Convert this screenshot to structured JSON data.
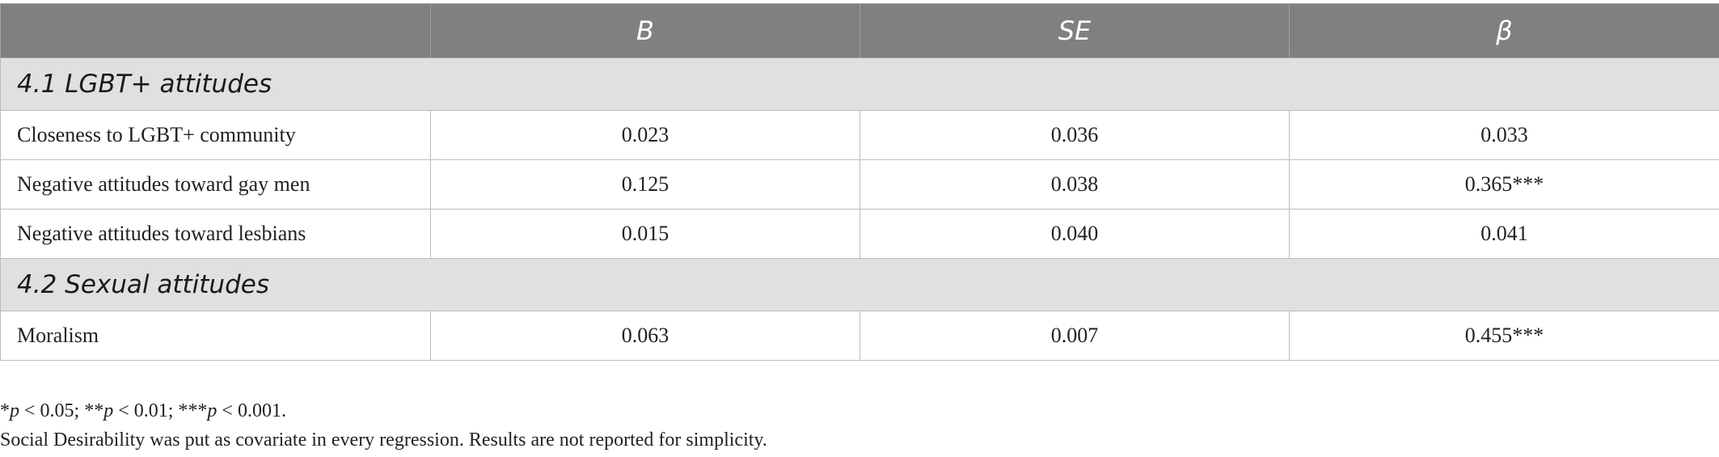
{
  "table": {
    "headers": [
      "",
      "B",
      "SE",
      "β"
    ],
    "sections": [
      {
        "title": "4.1 LGBT+ attitudes",
        "rows": [
          {
            "label": "Closeness to LGBT+ community",
            "B": "0.023",
            "SE": "0.036",
            "beta": "0.033"
          },
          {
            "label": "Negative attitudes toward gay men",
            "B": "0.125",
            "SE": "0.038",
            "beta": "0.365***"
          },
          {
            "label": "Negative attitudes toward lesbians",
            "B": "0.015",
            "SE": "0.040",
            "beta": "0.041"
          }
        ]
      },
      {
        "title": "4.2 Sexual attitudes",
        "rows": [
          {
            "label": "Moralism",
            "B": "0.063",
            "SE": "0.007",
            "beta": "0.455***"
          }
        ]
      }
    ]
  },
  "footnotes": {
    "sig": [
      {
        "star": "*",
        "p": "p",
        "rest": " < 0.05; "
      },
      {
        "star": "**",
        "p": "p",
        "rest": " < 0.01; "
      },
      {
        "star": "***",
        "p": "p",
        "rest": " < 0.001."
      }
    ],
    "note": "Social Desirability was put as covariate in every regression. Results are not reported for simplicity."
  }
}
